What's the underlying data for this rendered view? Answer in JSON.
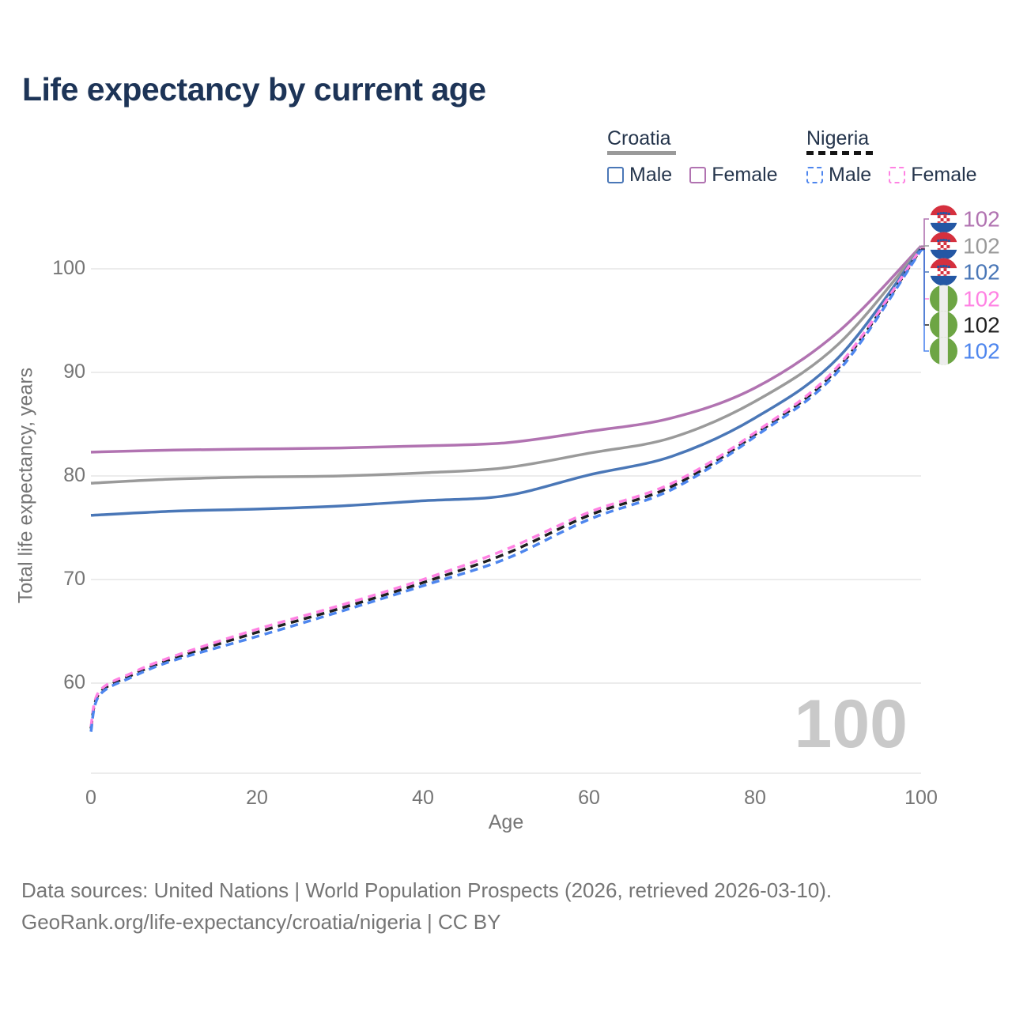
{
  "title": "Life expectancy by current age",
  "legend": {
    "groups": [
      {
        "country": "Croatia",
        "line_style": "solid",
        "items": [
          {
            "label": "Male",
            "color": "#4a77b7",
            "box_style": "solid"
          },
          {
            "label": "Female",
            "color": "#b173b1",
            "box_style": "solid"
          }
        ]
      },
      {
        "country": "Nigeria",
        "line_style": "dashed",
        "items": [
          {
            "label": "Male",
            "color": "#4e86ee",
            "box_style": "dashed"
          },
          {
            "label": "Female",
            "color": "#ff82e3",
            "box_style": "dashed"
          }
        ]
      }
    ]
  },
  "chart_data": {
    "type": "line",
    "title": "Life expectancy by current age",
    "xlabel": "Age",
    "ylabel": "Total life expectancy, years",
    "xlim": [
      0,
      100
    ],
    "ylim": [
      55,
      104
    ],
    "x_ticks": [
      0,
      20,
      40,
      60,
      80,
      100
    ],
    "y_ticks": [
      60,
      70,
      80,
      90,
      100
    ],
    "grid": "horizontal",
    "legend_position": "top-right",
    "series": [
      {
        "key": "croatia_female",
        "name": "Croatia Female",
        "country": "Croatia",
        "style": "solid",
        "color": "#b173b1",
        "x": [
          0,
          10,
          20,
          30,
          40,
          50,
          60,
          70,
          80,
          90,
          100
        ],
        "values": [
          82.3,
          82.5,
          82.6,
          82.7,
          82.9,
          83.2,
          84.3,
          85.6,
          88.5,
          93.9,
          102.2
        ]
      },
      {
        "key": "croatia_total",
        "name": "Croatia Both sexes",
        "country": "Croatia",
        "style": "solid",
        "color": "#9a9a9a",
        "x": [
          0,
          10,
          20,
          30,
          40,
          50,
          60,
          70,
          80,
          90,
          100
        ],
        "values": [
          79.3,
          79.7,
          79.9,
          80.0,
          80.3,
          80.8,
          82.2,
          83.7,
          87.2,
          92.7,
          102.1
        ]
      },
      {
        "key": "croatia_male",
        "name": "Croatia Male",
        "country": "Croatia",
        "style": "solid",
        "color": "#4a77b7",
        "x": [
          0,
          10,
          20,
          30,
          40,
          50,
          60,
          70,
          80,
          90,
          100
        ],
        "values": [
          76.2,
          76.6,
          76.8,
          77.1,
          77.6,
          78.1,
          80.1,
          81.9,
          85.6,
          91.4,
          102.0
        ]
      },
      {
        "key": "nigeria_total",
        "name": "Nigeria Both sexes",
        "country": "Nigeria",
        "style": "dashed",
        "color": "#1f1f1f",
        "x": [
          0,
          1,
          5,
          10,
          20,
          30,
          40,
          50,
          60,
          70,
          80,
          90,
          100
        ],
        "values": [
          55.6,
          59.0,
          60.8,
          62.4,
          64.9,
          67.2,
          69.7,
          72.5,
          76.2,
          79.0,
          84.0,
          90.4,
          101.9
        ]
      },
      {
        "key": "nigeria_female",
        "name": "Nigeria Female",
        "country": "Nigeria",
        "style": "dashed",
        "color": "#ff82e3",
        "x": [
          0,
          1,
          5,
          10,
          20,
          30,
          40,
          50,
          60,
          70,
          80,
          90,
          100
        ],
        "values": [
          55.8,
          59.2,
          61.0,
          62.6,
          65.2,
          67.5,
          70.0,
          72.9,
          76.5,
          79.3,
          84.2,
          90.6,
          102.0
        ]
      },
      {
        "key": "nigeria_male",
        "name": "Nigeria Male",
        "country": "Nigeria",
        "style": "dashed",
        "color": "#4e86ee",
        "x": [
          0,
          1,
          5,
          10,
          20,
          30,
          40,
          50,
          60,
          70,
          80,
          90,
          100
        ],
        "values": [
          55.3,
          58.8,
          60.6,
          62.2,
          64.5,
          66.9,
          69.4,
          72.0,
          75.8,
          78.7,
          83.8,
          90.1,
          101.8
        ]
      }
    ],
    "end_labels": [
      {
        "text": "102",
        "flag": "croatia",
        "color": "#b173b1",
        "series": "croatia_female"
      },
      {
        "text": "102",
        "flag": "croatia",
        "color": "#9a9a9a",
        "series": "croatia_total"
      },
      {
        "text": "102",
        "flag": "croatia",
        "color": "#4a77b7",
        "series": "croatia_male"
      },
      {
        "text": "102",
        "flag": "nigeria",
        "color": "#ff82e3",
        "series": "nigeria_female"
      },
      {
        "text": "102",
        "flag": "nigeria",
        "color": "#1f1f1f",
        "series": "nigeria_total"
      },
      {
        "text": "102",
        "flag": "nigeria",
        "color": "#4e86ee",
        "series": "nigeria_male"
      }
    ],
    "age_indicator": "100"
  },
  "colors": {
    "grid": "#e6e6e6",
    "axis_text": "#757575",
    "title_text": "#1d3457",
    "watermark": "#c9c9c9"
  },
  "footer": {
    "line1": "Data sources: United Nations | World Population Prospects (2026, retrieved 2026-03-10).",
    "line2": "GeoRank.org/life-expectancy/croatia/nigeria | CC BY"
  }
}
